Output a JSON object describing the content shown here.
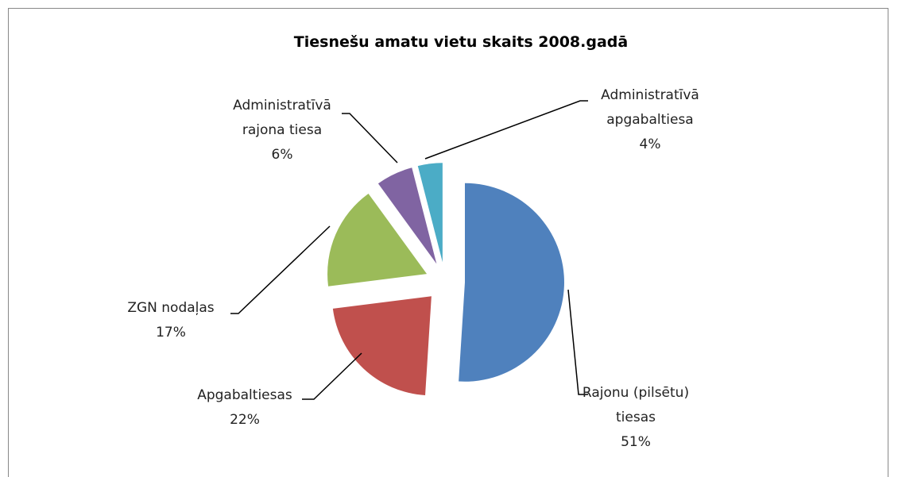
{
  "chart_data": {
    "type": "pie",
    "title": "Tiesnešu amatu vietu skaits 2008.gadā",
    "categories": [
      "Rajonu (pilsētu) tiesas",
      "Apgabaltiesas",
      "ZGN nodaļas",
      "Administratīvā rajona tiesa",
      "Administratīvā apgabaltiesa"
    ],
    "values": [
      51,
      22,
      17,
      6,
      4
    ],
    "value_labels": [
      "51%",
      "22%",
      "17%",
      "6%",
      "4%"
    ],
    "colors": [
      "#4f81bd",
      "#c0504d",
      "#9bbb59",
      "#8064a2",
      "#4bacc6"
    ]
  }
}
